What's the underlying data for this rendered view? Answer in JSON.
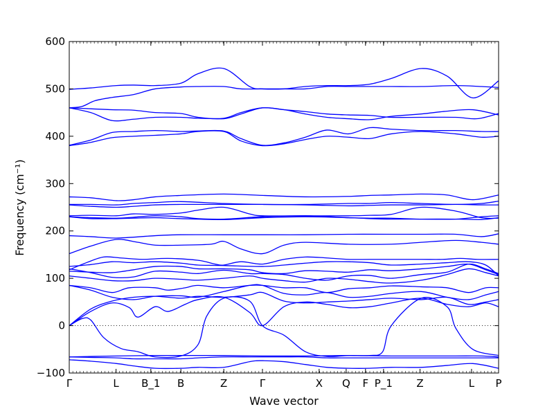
{
  "chart_data": {
    "type": "line",
    "xlabel": "Wave vector",
    "ylabel": "Frequency (cm⁻¹)",
    "ylim": [
      -100,
      600
    ],
    "yticks": [
      -100,
      0,
      100,
      200,
      300,
      400,
      500,
      600
    ],
    "ytick_labels": [
      "−100",
      "0",
      "100",
      "200",
      "300",
      "400",
      "500",
      "600"
    ],
    "xlim": [
      0,
      1
    ],
    "xticks": [
      {
        "label": "Γ",
        "x": 0.0
      },
      {
        "label": "L",
        "x": 0.109
      },
      {
        "label": "B_1",
        "x": 0.19
      },
      {
        "label": "B",
        "x": 0.26
      },
      {
        "label": "Z",
        "x": 0.36
      },
      {
        "label": "Γ",
        "x": 0.45
      },
      {
        "label": "X",
        "x": 0.582
      },
      {
        "label": "Q",
        "x": 0.645
      },
      {
        "label": "F",
        "x": 0.69
      },
      {
        "label": "P_1",
        "x": 0.732
      },
      {
        "label": "Z",
        "x": 0.817
      },
      {
        "label": "L",
        "x": 0.937
      },
      {
        "label": "P",
        "x": 1.0
      }
    ],
    "reference_line": {
      "y": 0,
      "style": "dotted"
    },
    "grid": false,
    "legend": "none",
    "line_color": "#0000ff",
    "series": [
      {
        "x": [
          0,
          0.05,
          0.11,
          0.15,
          0.2,
          0.26,
          0.3,
          0.36,
          0.42,
          0.45,
          0.5,
          0.55,
          0.6,
          0.65,
          0.7,
          0.75,
          0.82,
          0.88,
          0.94,
          1
        ],
        "y": [
          499,
          502,
          507,
          508,
          507,
          512,
          532,
          543,
          505,
          500,
          500,
          505,
          507,
          507,
          510,
          522,
          543,
          527,
          481,
          517
        ]
      },
      {
        "x": [
          0,
          0.03,
          0.06,
          0.1,
          0.15,
          0.2,
          0.26,
          0.3,
          0.36,
          0.4,
          0.45,
          0.5,
          0.55,
          0.6,
          0.65,
          0.7,
          0.75,
          0.82,
          0.9,
          0.96,
          1
        ],
        "y": [
          460,
          463,
          475,
          482,
          488,
          500,
          504,
          505,
          505,
          500,
          500,
          500,
          500,
          505,
          505,
          505,
          505,
          505,
          507,
          505,
          503
        ]
      },
      {
        "x": [
          0,
          0.05,
          0.1,
          0.15,
          0.2,
          0.26,
          0.3,
          0.36,
          0.4,
          0.45,
          0.5,
          0.55,
          0.6,
          0.65,
          0.7,
          0.75,
          0.82,
          0.9,
          0.95,
          1
        ],
        "y": [
          460,
          458,
          456,
          455,
          450,
          448,
          440,
          437,
          447,
          460,
          456,
          452,
          447,
          445,
          444,
          440,
          440,
          440,
          437,
          448
        ]
      },
      {
        "x": [
          0,
          0.05,
          0.1,
          0.15,
          0.2,
          0.26,
          0.3,
          0.36,
          0.4,
          0.45,
          0.5,
          0.55,
          0.6,
          0.65,
          0.7,
          0.75,
          0.82,
          0.88,
          0.94,
          1
        ],
        "y": [
          460,
          450,
          433,
          436,
          440,
          440,
          438,
          438,
          450,
          460,
          456,
          447,
          440,
          437,
          435,
          442,
          447,
          453,
          456,
          445
        ]
      },
      {
        "x": [
          0,
          0.05,
          0.1,
          0.15,
          0.2,
          0.26,
          0.3,
          0.36,
          0.4,
          0.45,
          0.5,
          0.55,
          0.6,
          0.65,
          0.7,
          0.75,
          0.82,
          0.9,
          0.96,
          1
        ],
        "y": [
          381,
          392,
          408,
          410,
          412,
          410,
          411,
          411,
          395,
          381,
          386,
          398,
          413,
          405,
          418,
          415,
          412,
          412,
          410,
          410
        ]
      },
      {
        "x": [
          0,
          0.05,
          0.1,
          0.15,
          0.2,
          0.26,
          0.3,
          0.36,
          0.4,
          0.45,
          0.5,
          0.55,
          0.6,
          0.65,
          0.7,
          0.75,
          0.82,
          0.9,
          0.96,
          1
        ],
        "y": [
          380,
          387,
          397,
          400,
          402,
          405,
          410,
          410,
          390,
          380,
          384,
          393,
          400,
          398,
          395,
          405,
          410,
          405,
          398,
          400
        ]
      },
      {
        "x": [
          0,
          0.05,
          0.11,
          0.15,
          0.2,
          0.26,
          0.36,
          0.45,
          0.55,
          0.65,
          0.7,
          0.75,
          0.82,
          0.88,
          0.94,
          1
        ],
        "y": [
          272,
          270,
          264,
          266,
          272,
          275,
          278,
          275,
          272,
          273,
          275,
          276,
          278,
          276,
          266,
          276
        ]
      },
      {
        "x": [
          0,
          0.05,
          0.11,
          0.15,
          0.2,
          0.26,
          0.36,
          0.45,
          0.55,
          0.65,
          0.7,
          0.75,
          0.82,
          0.9,
          0.96,
          1
        ],
        "y": [
          256,
          256,
          255,
          258,
          260,
          262,
          258,
          256,
          256,
          258,
          258,
          260,
          258,
          256,
          258,
          263
        ]
      },
      {
        "x": [
          0,
          0.05,
          0.11,
          0.15,
          0.2,
          0.26,
          0.3,
          0.36,
          0.45,
          0.55,
          0.65,
          0.7,
          0.75,
          0.82,
          0.9,
          0.96,
          1
        ],
        "y": [
          255,
          252,
          250,
          252,
          255,
          256,
          256,
          256,
          256,
          255,
          253,
          254,
          255,
          255,
          256,
          255,
          255
        ]
      },
      {
        "x": [
          0,
          0.05,
          0.11,
          0.15,
          0.2,
          0.26,
          0.3,
          0.36,
          0.42,
          0.45,
          0.55,
          0.65,
          0.7,
          0.75,
          0.82,
          0.9,
          0.96,
          1
        ],
        "y": [
          232,
          233,
          232,
          236,
          235,
          238,
          244,
          250,
          236,
          232,
          232,
          232,
          233,
          235,
          250,
          242,
          228,
          227
        ]
      },
      {
        "x": [
          0,
          0.05,
          0.11,
          0.15,
          0.2,
          0.26,
          0.3,
          0.36,
          0.45,
          0.55,
          0.65,
          0.7,
          0.75,
          0.82,
          0.9,
          0.96,
          1
        ],
        "y": [
          230,
          228,
          227,
          229,
          232,
          230,
          226,
          225,
          230,
          232,
          228,
          227,
          227,
          225,
          225,
          230,
          232
        ]
      },
      {
        "x": [
          0,
          0.05,
          0.11,
          0.15,
          0.2,
          0.26,
          0.36,
          0.45,
          0.55,
          0.65,
          0.7,
          0.75,
          0.82,
          0.9,
          0.96,
          1
        ],
        "y": [
          230,
          226,
          226,
          227,
          228,
          226,
          224,
          228,
          230,
          228,
          226,
          225,
          225,
          225,
          224,
          228
        ]
      },
      {
        "x": [
          0,
          0.05,
          0.11,
          0.2,
          0.26,
          0.36,
          0.42,
          0.45,
          0.55,
          0.65,
          0.75,
          0.82,
          0.9,
          0.96,
          1
        ],
        "y": [
          190,
          188,
          185,
          190,
          192,
          192,
          192,
          192,
          192,
          193,
          193,
          193,
          193,
          188,
          194
        ]
      },
      {
        "x": [
          0,
          0.05,
          0.11,
          0.16,
          0.2,
          0.26,
          0.33,
          0.36,
          0.4,
          0.45,
          0.5,
          0.55,
          0.65,
          0.75,
          0.82,
          0.9,
          0.96,
          1
        ],
        "y": [
          152,
          168,
          182,
          176,
          170,
          170,
          172,
          178,
          162,
          152,
          170,
          176,
          172,
          172,
          176,
          180,
          176,
          172
        ]
      },
      {
        "x": [
          0,
          0.04,
          0.08,
          0.12,
          0.17,
          0.23,
          0.3,
          0.34,
          0.36,
          0.4,
          0.45,
          0.5,
          0.55,
          0.6,
          0.65,
          0.7,
          0.75,
          0.82,
          0.87,
          0.91,
          0.95,
          1
        ],
        "y": [
          118,
          133,
          145,
          143,
          140,
          142,
          138,
          130,
          128,
          135,
          130,
          140,
          145,
          143,
          140,
          140,
          140,
          140,
          140,
          142,
          140,
          140
        ]
      },
      {
        "x": [
          0,
          0.05,
          0.1,
          0.15,
          0.2,
          0.26,
          0.3,
          0.36,
          0.45,
          0.5,
          0.55,
          0.6,
          0.65,
          0.7,
          0.75,
          0.82,
          0.88,
          0.93,
          0.97,
          1
        ],
        "y": [
          125,
          129,
          135,
          133,
          135,
          132,
          128,
          127,
          125,
          128,
          132,
          135,
          135,
          133,
          128,
          130,
          133,
          135,
          128,
          105
        ]
      },
      {
        "x": [
          0,
          0.05,
          0.1,
          0.15,
          0.2,
          0.26,
          0.3,
          0.36,
          0.42,
          0.45,
          0.5,
          0.55,
          0.6,
          0.65,
          0.7,
          0.75,
          0.82,
          0.88,
          0.93,
          0.97,
          1
        ],
        "y": [
          115,
          113,
          112,
          118,
          125,
          125,
          120,
          120,
          118,
          112,
          110,
          116,
          115,
          113,
          118,
          116,
          120,
          125,
          130,
          118,
          108
        ]
      },
      {
        "x": [
          0,
          0.05,
          0.1,
          0.15,
          0.2,
          0.26,
          0.3,
          0.36,
          0.42,
          0.45,
          0.5,
          0.55,
          0.6,
          0.65,
          0.7,
          0.75,
          0.82,
          0.88,
          0.93,
          0.97,
          1
        ],
        "y": [
          120,
          112,
          102,
          103,
          115,
          113,
          110,
          117,
          110,
          110,
          108,
          100,
          96,
          105,
          106,
          100,
          108,
          113,
          130,
          120,
          110
        ]
      },
      {
        "x": [
          0,
          0.05,
          0.1,
          0.15,
          0.2,
          0.26,
          0.3,
          0.36,
          0.42,
          0.45,
          0.5,
          0.55,
          0.6,
          0.65,
          0.7,
          0.75,
          0.82,
          0.88,
          0.93,
          0.97,
          1
        ],
        "y": [
          105,
          100,
          95,
          95,
          100,
          98,
          96,
          100,
          105,
          100,
          95,
          92,
          100,
          98,
          93,
          90,
          96,
          108,
          120,
          112,
          105
        ]
      },
      {
        "x": [
          0,
          0.05,
          0.1,
          0.14,
          0.2,
          0.23,
          0.27,
          0.3,
          0.36,
          0.42,
          0.45,
          0.5,
          0.55,
          0.6,
          0.65,
          0.7,
          0.75,
          0.82,
          0.88,
          0.93,
          0.97,
          1
        ],
        "y": [
          85,
          80,
          70,
          80,
          80,
          75,
          80,
          85,
          80,
          85,
          85,
          80,
          80,
          70,
          78,
          80,
          84,
          82,
          80,
          70,
          80,
          80
        ]
      },
      {
        "x": [
          0,
          0.05,
          0.1,
          0.15,
          0.2,
          0.26,
          0.3,
          0.36,
          0.42,
          0.45,
          0.5,
          0.55,
          0.6,
          0.65,
          0.7,
          0.75,
          0.82,
          0.88,
          0.93,
          0.97,
          1
        ],
        "y": [
          85,
          75,
          60,
          55,
          62,
          63,
          60,
          72,
          85,
          85,
          68,
          65,
          70,
          60,
          62,
          68,
          72,
          60,
          55,
          65,
          72
        ]
      },
      {
        "x": [
          0,
          0.05,
          0.1,
          0.15,
          0.2,
          0.26,
          0.3,
          0.36,
          0.42,
          0.45,
          0.5,
          0.55,
          0.6,
          0.65,
          0.7,
          0.75,
          0.82,
          0.88,
          0.93,
          0.97,
          1
        ],
        "y": [
          0,
          35,
          52,
          60,
          62,
          58,
          62,
          60,
          65,
          70,
          52,
          48,
          50,
          52,
          55,
          58,
          55,
          60,
          45,
          50,
          55
        ]
      },
      {
        "x": [
          0,
          0.05,
          0.1,
          0.14,
          0.16,
          0.2,
          0.23,
          0.27,
          0.3,
          0.36,
          0.42,
          0.45,
          0.5,
          0.55,
          0.6,
          0.65,
          0.7,
          0.75,
          0.82,
          0.88,
          0.93,
          0.97,
          1
        ],
        "y": [
          0,
          30,
          48,
          38,
          18,
          40,
          30,
          45,
          55,
          60,
          28,
          0,
          40,
          50,
          45,
          38,
          40,
          48,
          58,
          45,
          40,
          48,
          40
        ]
      },
      {
        "x": [
          0,
          0.03,
          0.05,
          0.08,
          0.12,
          0.16,
          0.2,
          0.26,
          0.3,
          0.32,
          0.36,
          0.42,
          0.45,
          0.5,
          0.55,
          0.6,
          0.65,
          0.7,
          0.73,
          0.75,
          0.82,
          0.88,
          0.9,
          0.94,
          1
        ],
        "y": [
          0,
          15,
          12,
          -25,
          -48,
          -55,
          -66,
          -64,
          -40,
          20,
          58,
          52,
          0,
          -20,
          -55,
          -65,
          -63,
          -63,
          -55,
          0,
          58,
          40,
          -5,
          -50,
          -63
        ]
      },
      {
        "x": [
          0,
          0.05,
          0.11,
          0.2,
          0.26,
          0.36,
          0.45,
          0.55,
          0.65,
          0.75,
          0.82,
          0.9,
          0.96,
          1
        ],
        "y": [
          -66,
          -65,
          -64,
          -63,
          -63,
          -63,
          -64,
          -64,
          -63,
          -64,
          -64,
          -64,
          -64,
          -66
        ]
      },
      {
        "x": [
          0,
          0.05,
          0.11,
          0.15,
          0.2,
          0.26,
          0.3,
          0.36,
          0.42,
          0.45,
          0.5,
          0.55,
          0.6,
          0.65,
          0.7,
          0.75,
          0.82,
          0.88,
          0.94,
          1
        ],
        "y": [
          -66,
          -67,
          -68,
          -70,
          -70,
          -70,
          -68,
          -66,
          -66,
          -66,
          -66,
          -66,
          -68,
          -68,
          -68,
          -68,
          -68,
          -68,
          -68,
          -68
        ]
      },
      {
        "x": [
          0,
          0.05,
          0.11,
          0.15,
          0.2,
          0.26,
          0.3,
          0.36,
          0.42,
          0.45,
          0.5,
          0.55,
          0.6,
          0.65,
          0.7,
          0.75,
          0.82,
          0.88,
          0.94,
          1
        ],
        "y": [
          -72,
          -75,
          -80,
          -85,
          -90,
          -90,
          -88,
          -88,
          -76,
          -74,
          -76,
          -82,
          -88,
          -90,
          -90,
          -88,
          -88,
          -84,
          -80,
          -90
        ]
      }
    ]
  }
}
